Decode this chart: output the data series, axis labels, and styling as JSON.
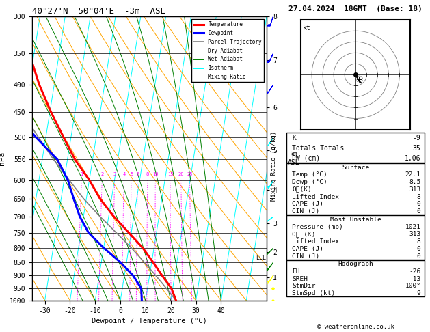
{
  "title_left": "40°27'N  50°04'E  -3m  ASL",
  "title_right": "27.04.2024  18GMT  (Base: 18)",
  "xlabel": "Dewpoint / Temperature (°C)",
  "x_min": -35,
  "x_max": 40,
  "skew_factor": 15,
  "p_min": 300,
  "p_max": 1000,
  "pressure_levels": [
    300,
    350,
    400,
    450,
    500,
    550,
    600,
    650,
    700,
    750,
    800,
    850,
    900,
    950,
    1000
  ],
  "temp_p": [
    1000,
    950,
    900,
    850,
    800,
    750,
    700,
    650,
    600,
    550,
    500,
    450,
    400,
    350,
    300
  ],
  "temp_T": [
    22.1,
    19.5,
    15.0,
    10.5,
    5.5,
    -1.0,
    -8.0,
    -14.5,
    -20.0,
    -27.0,
    -33.0,
    -39.5,
    -46.0,
    -52.0,
    -57.0
  ],
  "dewp_p": [
    1000,
    950,
    900,
    850,
    800,
    750,
    700,
    650,
    600,
    550,
    500,
    450,
    400,
    350,
    300
  ],
  "dewp_T": [
    8.5,
    7.5,
    3.5,
    -2.5,
    -10.0,
    -17.0,
    -21.5,
    -25.0,
    -28.5,
    -34.0,
    -44.0,
    -54.0,
    -61.0,
    -66.0,
    -70.0
  ],
  "parcel_p": [
    1000,
    950,
    900,
    850,
    800,
    750,
    700,
    650,
    600,
    550,
    500,
    450,
    400,
    350,
    300
  ],
  "parcel_T": [
    22.1,
    17.5,
    12.5,
    7.0,
    1.0,
    -6.0,
    -13.5,
    -21.0,
    -28.0,
    -35.5,
    -43.0,
    -51.0,
    -58.5,
    -66.0,
    -73.5
  ],
  "mixing_ratios": [
    1,
    2,
    3,
    4,
    5,
    6,
    8,
    10,
    15,
    20,
    25
  ],
  "km_ticks": [
    1,
    2,
    3,
    4,
    5,
    6,
    7,
    8
  ],
  "km_pressures": [
    900,
    800,
    700,
    600,
    500,
    410,
    330,
    270
  ],
  "lcl_pressure": 835,
  "info_K": "-9",
  "info_TT": "35",
  "info_PW": "1.06",
  "surf_temp": "22.1",
  "surf_dewp": "8.5",
  "surf_theta_e": "313",
  "surf_li": "8",
  "surf_cape": "0",
  "surf_cin": "0",
  "mu_pressure": "1021",
  "mu_theta_e": "313",
  "mu_li": "8",
  "mu_cape": "0",
  "mu_cin": "0",
  "hodo_EH": "-26",
  "hodo_SREH": "-13",
  "hodo_StmDir": "100°",
  "hodo_StmSpd": "9",
  "wind_barb_pressures": [
    300,
    350,
    400,
    500,
    600,
    700,
    800,
    850,
    900,
    950,
    1000
  ],
  "wind_barb_u": [
    5,
    7,
    8,
    5,
    3,
    4,
    3,
    3,
    2,
    1,
    1
  ],
  "wind_barb_v": [
    15,
    15,
    12,
    8,
    5,
    3,
    3,
    4,
    3,
    2,
    2
  ],
  "wind_barb_colors": [
    "blue",
    "blue",
    "blue",
    "cyan",
    "cyan",
    "cyan",
    "green",
    "green",
    "yellow",
    "yellow",
    "yellow"
  ],
  "hodo_u": [
    0.0,
    1.0,
    3.0,
    4.5,
    5.0,
    4.0,
    2.5
  ],
  "hodo_v": [
    0.0,
    -2.0,
    -5.0,
    -7.0,
    -7.5,
    -7.0,
    -5.0
  ],
  "hodo_storm_u": 3.5,
  "hodo_storm_v": -4.0,
  "legend_entries": [
    {
      "label": "Temperature",
      "color": "red",
      "lw": 2.2,
      "ls": "-"
    },
    {
      "label": "Dewpoint",
      "color": "blue",
      "lw": 2.2,
      "ls": "-"
    },
    {
      "label": "Parcel Trajectory",
      "color": "gray",
      "lw": 1.2,
      "ls": "-"
    },
    {
      "label": "Dry Adiabat",
      "color": "orange",
      "lw": 0.7,
      "ls": "-"
    },
    {
      "label": "Wet Adiabat",
      "color": "green",
      "lw": 0.7,
      "ls": "-"
    },
    {
      "label": "Isotherm",
      "color": "cyan",
      "lw": 0.7,
      "ls": "-"
    },
    {
      "label": "Mixing Ratio",
      "color": "magenta",
      "lw": 0.7,
      "ls": ":"
    }
  ]
}
